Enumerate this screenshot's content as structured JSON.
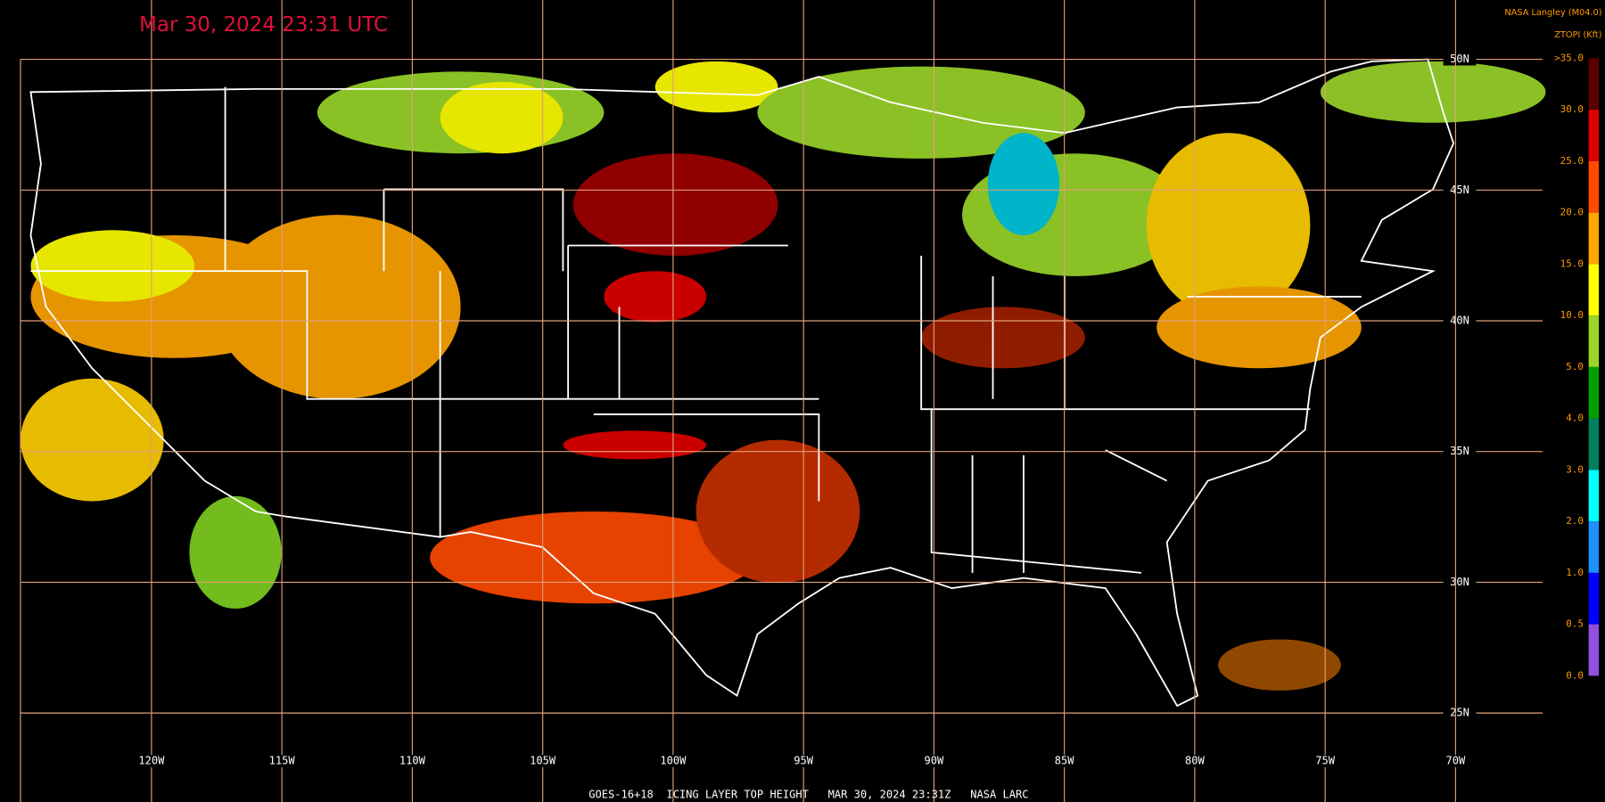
{
  "header": {
    "title": "Mar 30, 2024 23:31 UTC",
    "credit": "NASA Langley (M04.0)",
    "unit": "ZTOPI (Kft)"
  },
  "legend": {
    "labels": [
      ">35.0",
      "30.0",
      "25.0",
      "20.0",
      "15.0",
      "10.0",
      "5.0",
      "4.0",
      "3.0",
      "2.0",
      "1.0",
      "0.5",
      "0.0"
    ],
    "colors": [
      "#5a0000",
      "#e00000",
      "#ff4a00",
      "#ffa500",
      "#ffff00",
      "#9ad62a",
      "#00a000",
      "#008060",
      "#00ffff",
      "#1e90ff",
      "#0000ff",
      "#9050e0"
    ]
  },
  "latitudes": [
    "50N",
    "45N",
    "40N",
    "35N",
    "30N",
    "25N"
  ],
  "longitudes": [
    "120W",
    "115W",
    "110W",
    "105W",
    "100W",
    "95W",
    "90W",
    "85W",
    "80W",
    "75W",
    "70W"
  ],
  "footer": "GOES-16+18  ICING LAYER TOP HEIGHT   MAR 30, 2024 23:31Z   NASA LARC"
}
